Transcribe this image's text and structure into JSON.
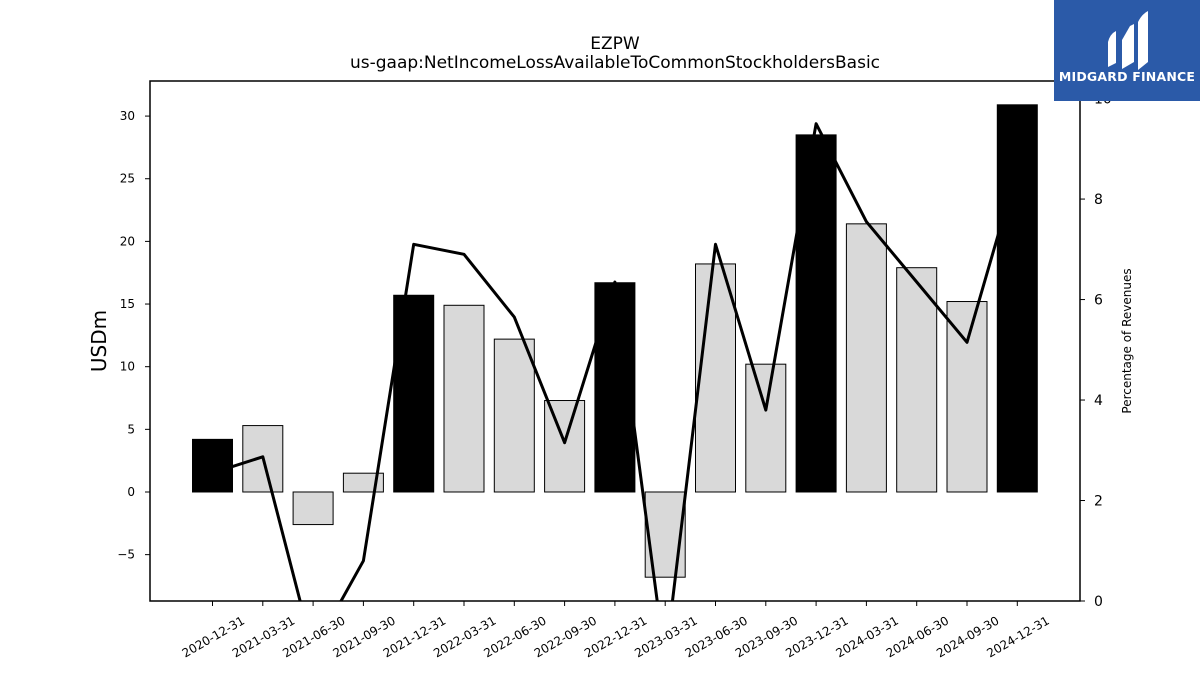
{
  "chart_data": {
    "type": "bar",
    "title": "EZPW",
    "subtitle": "us-gaap:NetIncomeLossAvailableToCommonStockholdersBasic",
    "ylabel": "USDm",
    "y2label": "Percentage of Revenues",
    "categories": [
      "2020-12-31",
      "2021-03-31",
      "2021-06-30",
      "2021-09-30",
      "2021-12-31",
      "2022-03-31",
      "2022-06-30",
      "2022-09-30",
      "2022-12-31",
      "2023-03-31",
      "2023-06-30",
      "2023-09-30",
      "2023-12-31",
      "2024-03-31",
      "2024-06-30",
      "2024-09-30",
      "2024-12-31"
    ],
    "series": [
      {
        "axis": "left",
        "kind": "bar",
        "values": [
          4.2,
          5.3,
          -2.6,
          1.5,
          15.7,
          14.9,
          12.2,
          7.3,
          16.7,
          -6.8,
          18.2,
          10.2,
          28.5,
          21.4,
          17.9,
          15.2,
          30.9
        ],
        "highlight": [
          true,
          false,
          false,
          false,
          true,
          false,
          false,
          false,
          true,
          false,
          false,
          false,
          true,
          false,
          false,
          false,
          true
        ]
      },
      {
        "axis": "right",
        "kind": "line",
        "values": [
          2.55,
          2.87,
          -1.0,
          0.8,
          7.1,
          6.9,
          5.65,
          3.15,
          6.35,
          -1.2,
          7.1,
          3.8,
          9.5,
          7.55,
          6.35,
          5.15,
          8.6
        ]
      }
    ],
    "ylim": [
      -8.7,
      32.8
    ],
    "y2lim": [
      0,
      10.35
    ],
    "yticks": [
      -5,
      0,
      5,
      10,
      15,
      20,
      25,
      30
    ],
    "yticklabels": [
      "−5",
      "0",
      "5",
      "10",
      "15",
      "20",
      "25",
      "30"
    ],
    "y2ticks": [
      0,
      2,
      4,
      6,
      8,
      10
    ],
    "y2ticklabels": [
      "0",
      "2",
      "4",
      "6",
      "8",
      "10"
    ],
    "grid": false,
    "colors": {
      "highlight_bar": "#000000",
      "normal_bar": "#d9d9d9",
      "bar_edge": "#000000",
      "line": "#000000"
    }
  },
  "logo": {
    "text": "MIDGARD FINANCE",
    "bg": "#2b5aa8",
    "fg": "#ffffff"
  }
}
